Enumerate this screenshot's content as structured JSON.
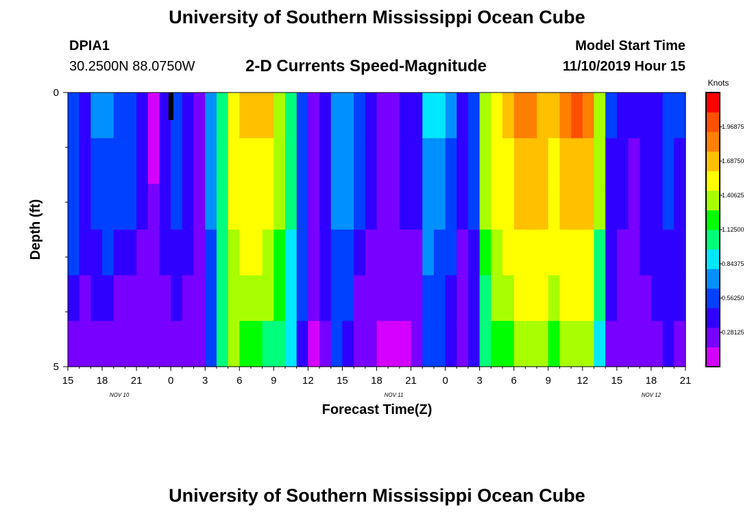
{
  "page": {
    "title_top": "University of Southern Mississippi Ocean Cube",
    "title_bottom": "University of Southern Mississippi Ocean Cube",
    "station_id": "DPIA1",
    "coordinates": "30.2500N 88.0750W",
    "subtitle": "2-D Currents Speed-Magnitude",
    "model_start_label": "Model Start Time",
    "model_start_value": "11/10/2019 Hour 15"
  },
  "chart_data": {
    "type": "heatmap",
    "title": "2-D Currents Speed-Magnitude",
    "xlabel": "Forecast Time(Z)",
    "ylabel": "Depth (ft)",
    "x_ticks": [
      "15",
      "18",
      "21",
      "0",
      "3",
      "6",
      "9",
      "12",
      "15",
      "18",
      "21",
      "0",
      "3",
      "6",
      "9",
      "12",
      "15",
      "18",
      "21"
    ],
    "x_hours_start": 15,
    "x_hours_end": 69,
    "date_labels": [
      {
        "text": "NOV 10",
        "hour": 19.5
      },
      {
        "text": "NOV 11",
        "hour": 43.5
      },
      {
        "text": "NOV 12",
        "hour": 66
      }
    ],
    "y_tick_labels": [
      "0",
      "5"
    ],
    "ylim": [
      0,
      5
    ],
    "y_minor_ticks": [
      1,
      2,
      3,
      4
    ],
    "colorbar": {
      "unit": "Knots",
      "min": 0,
      "max": 2.25,
      "tick_values": [
        0.28125,
        0.5625,
        0.84375,
        1.125,
        1.40625,
        1.6875,
        1.96875
      ],
      "tick_labels": [
        "0.28125",
        "0.56250",
        "0.84375",
        "1.12500",
        "1.40625",
        "1.68750",
        "1.96875"
      ],
      "colors": [
        "#d400ff",
        "#7800ff",
        "#3000ff",
        "#0040ff",
        "#0090ff",
        "#00e8ff",
        "#00ff7a",
        "#00ff00",
        "#a8ff00",
        "#ffff00",
        "#ffc000",
        "#ff8000",
        "#ff5000",
        "#ff0000"
      ]
    },
    "missing_cell": {
      "hour": 23.8,
      "depth_from": 0,
      "depth_to": 0.5
    },
    "depths_layers": 6,
    "time_bins": 54,
    "columns": [
      [
        0.55,
        0.55,
        0.55,
        0.55,
        0.45,
        0.3
      ],
      [
        0.4,
        0.4,
        0.4,
        0.4,
        0.3,
        0.25
      ],
      [
        0.7,
        0.62,
        0.62,
        0.45,
        0.35,
        0.2
      ],
      [
        0.7,
        0.58,
        0.58,
        0.5,
        0.35,
        0.25
      ],
      [
        0.55,
        0.52,
        0.52,
        0.4,
        0.3,
        0.2
      ],
      [
        0.6,
        0.55,
        0.55,
        0.35,
        0.3,
        0.25
      ],
      [
        0.4,
        0.4,
        0.4,
        0.3,
        0.28,
        0.25
      ],
      [
        0.15,
        0.15,
        0.3,
        0.3,
        0.3,
        0.25
      ],
      [
        0.4,
        0.4,
        0.4,
        0.35,
        0.3,
        0.25
      ],
      [
        0.55,
        0.55,
        0.55,
        0.4,
        0.35,
        0.25
      ],
      [
        0.4,
        0.4,
        0.4,
        0.35,
        0.3,
        0.2
      ],
      [
        0.25,
        0.25,
        0.25,
        0.25,
        0.2,
        0.2
      ],
      [
        0.75,
        0.65,
        0.65,
        0.6,
        0.6,
        0.6
      ],
      [
        1.1,
        1.1,
        1.1,
        1.0,
        1.0,
        1.0
      ],
      [
        1.6,
        1.45,
        1.45,
        1.35,
        1.3,
        1.3
      ],
      [
        1.65,
        1.5,
        1.5,
        1.45,
        1.35,
        1.15
      ],
      [
        1.7,
        1.55,
        1.55,
        1.45,
        1.35,
        1.2
      ],
      [
        1.65,
        1.5,
        1.5,
        1.4,
        1.3,
        1.1
      ],
      [
        1.4,
        1.3,
        1.3,
        1.2,
        1.15,
        1.0
      ],
      [
        1.0,
        1.0,
        1.0,
        0.95,
        0.9,
        0.85
      ],
      [
        0.6,
        0.6,
        0.6,
        0.55,
        0.5,
        0.45
      ],
      [
        0.25,
        0.25,
        0.25,
        0.3,
        0.2,
        0.05
      ],
      [
        0.4,
        0.4,
        0.4,
        0.4,
        0.35,
        0.3
      ],
      [
        0.8,
        0.65,
        0.65,
        0.55,
        0.5,
        0.5
      ],
      [
        0.75,
        0.65,
        0.65,
        0.55,
        0.5,
        0.45
      ],
      [
        0.5,
        0.5,
        0.5,
        0.4,
        0.3,
        0.25
      ],
      [
        0.35,
        0.35,
        0.35,
        0.3,
        0.25,
        0.2
      ],
      [
        0.3,
        0.3,
        0.3,
        0.2,
        0.2,
        0.15
      ],
      [
        0.3,
        0.3,
        0.3,
        0.2,
        0.2,
        0.15
      ],
      [
        0.35,
        0.35,
        0.35,
        0.25,
        0.2,
        0.15
      ],
      [
        0.45,
        0.45,
        0.45,
        0.3,
        0.25,
        0.2
      ],
      [
        0.9,
        0.8,
        0.8,
        0.65,
        0.55,
        0.55
      ],
      [
        0.85,
        0.75,
        0.75,
        0.6,
        0.55,
        0.5
      ],
      [
        0.7,
        0.6,
        0.6,
        0.5,
        0.45,
        0.4
      ],
      [
        0.35,
        0.35,
        0.35,
        0.3,
        0.3,
        0.2
      ],
      [
        0.55,
        0.55,
        0.55,
        0.45,
        0.4,
        0.35
      ],
      [
        1.35,
        1.3,
        1.3,
        1.2,
        1.1,
        1.0
      ],
      [
        1.55,
        1.45,
        1.45,
        1.4,
        1.3,
        1.15
      ],
      [
        1.75,
        1.6,
        1.6,
        1.5,
        1.4,
        1.25
      ],
      [
        1.8,
        1.65,
        1.65,
        1.55,
        1.45,
        1.3
      ],
      [
        1.8,
        1.65,
        1.65,
        1.55,
        1.45,
        1.3
      ],
      [
        1.75,
        1.65,
        1.65,
        1.55,
        1.45,
        1.3
      ],
      [
        1.65,
        1.55,
        1.55,
        1.5,
        1.4,
        1.25
      ],
      [
        1.85,
        1.7,
        1.7,
        1.55,
        1.45,
        1.35
      ],
      [
        2.0,
        1.75,
        1.75,
        1.6,
        1.5,
        1.4
      ],
      [
        1.9,
        1.7,
        1.7,
        1.55,
        1.45,
        1.3
      ],
      [
        1.4,
        1.3,
        1.3,
        1.1,
        1.0,
        0.9
      ],
      [
        0.5,
        0.4,
        0.4,
        0.4,
        0.35,
        0.3
      ],
      [
        0.4,
        0.35,
        0.35,
        0.3,
        0.25,
        0.2
      ],
      [
        0.35,
        0.3,
        0.3,
        0.3,
        0.25,
        0.25
      ],
      [
        0.4,
        0.4,
        0.4,
        0.35,
        0.3,
        0.25
      ],
      [
        0.45,
        0.45,
        0.45,
        0.4,
        0.35,
        0.3
      ],
      [
        0.55,
        0.5,
        0.5,
        0.45,
        0.4,
        0.35
      ],
      [
        0.5,
        0.45,
        0.45,
        0.4,
        0.35,
        0.3
      ]
    ]
  }
}
